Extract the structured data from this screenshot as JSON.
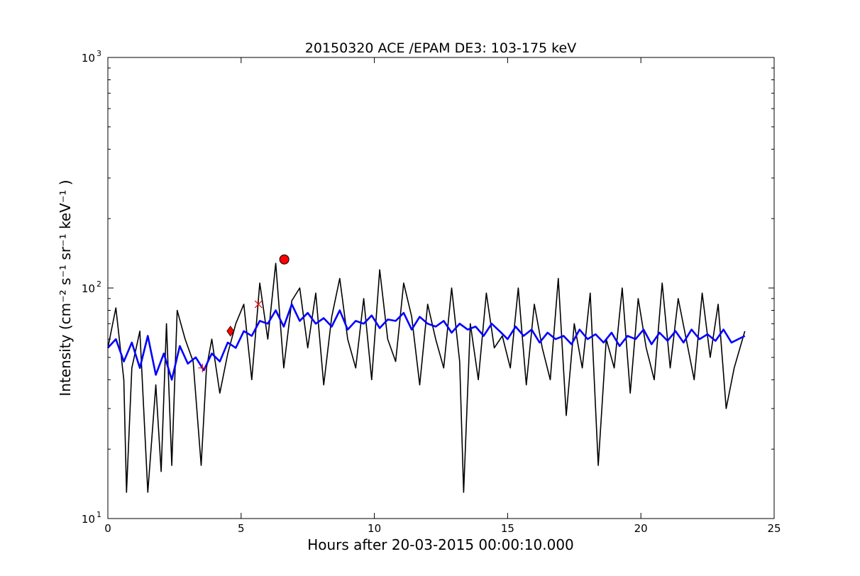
{
  "chart_data": {
    "type": "line",
    "title": "20150320 ACE /EPAM DE3: 103-175 keV",
    "xlabel": "Hours after 20-03-2015 00:00:10.000",
    "ylabel": "Intensity (cm⁻² s⁻¹ sr⁻¹ keV⁻¹ )",
    "xlim": [
      0,
      25
    ],
    "ylim": [
      10,
      1000
    ],
    "yscale": "log",
    "x_ticks": [
      0,
      5,
      10,
      15,
      20,
      25
    ],
    "x_tick_labels": [
      "0",
      "5",
      "10",
      "15",
      "20",
      "25"
    ],
    "y_ticks": [
      10,
      100,
      1000
    ],
    "y_tick_labels": [
      "10",
      "10",
      "10"
    ],
    "y_tick_exponents": [
      "1",
      "2",
      "3"
    ],
    "grid": false,
    "legend": "none",
    "series": [
      {
        "style": "black-raw",
        "color": "#000000",
        "x": [
          0.0,
          0.3,
          0.6,
          0.7,
          0.9,
          1.2,
          1.5,
          1.8,
          2.0,
          2.2,
          2.4,
          2.6,
          2.9,
          3.2,
          3.5,
          3.7,
          3.9,
          4.2,
          4.5,
          4.8,
          5.1,
          5.4,
          5.7,
          6.0,
          6.3,
          6.6,
          6.9,
          7.2,
          7.5,
          7.8,
          8.1,
          8.4,
          8.7,
          9.0,
          9.3,
          9.6,
          9.9,
          10.2,
          10.5,
          10.8,
          11.1,
          11.4,
          11.7,
          12.0,
          12.3,
          12.6,
          12.9,
          13.2,
          13.35,
          13.6,
          13.9,
          14.2,
          14.5,
          14.8,
          15.1,
          15.4,
          15.7,
          16.0,
          16.3,
          16.6,
          16.9,
          17.2,
          17.5,
          17.8,
          18.1,
          18.4,
          18.7,
          19.0,
          19.3,
          19.6,
          19.9,
          20.2,
          20.5,
          20.8,
          21.1,
          21.4,
          21.7,
          22.0,
          22.3,
          22.6,
          22.9,
          23.2,
          23.5,
          23.9
        ],
        "y": [
          55,
          82,
          40,
          13,
          45,
          65,
          13,
          38,
          16,
          70,
          17,
          80,
          60,
          48,
          17,
          45,
          60,
          35,
          52,
          70,
          85,
          40,
          105,
          60,
          128,
          45,
          88,
          100,
          55,
          95,
          38,
          75,
          110,
          60,
          45,
          90,
          40,
          120,
          60,
          48,
          105,
          75,
          38,
          85,
          60,
          45,
          100,
          48,
          13,
          70,
          40,
          95,
          55,
          62,
          45,
          100,
          38,
          85,
          55,
          40,
          110,
          28,
          70,
          45,
          95,
          17,
          60,
          45,
          100,
          35,
          90,
          55,
          40,
          105,
          45,
          90,
          60,
          40,
          95,
          50,
          85,
          30,
          45,
          65
        ]
      },
      {
        "style": "blue-average",
        "color": "#0000ff",
        "x": [
          0.0,
          0.3,
          0.6,
          0.9,
          1.2,
          1.5,
          1.8,
          2.1,
          2.4,
          2.7,
          3.0,
          3.3,
          3.6,
          3.9,
          4.2,
          4.5,
          4.8,
          5.1,
          5.4,
          5.7,
          6.0,
          6.3,
          6.6,
          6.9,
          7.2,
          7.5,
          7.8,
          8.1,
          8.4,
          8.7,
          9.0,
          9.3,
          9.6,
          9.9,
          10.2,
          10.5,
          10.8,
          11.1,
          11.4,
          11.7,
          12.0,
          12.3,
          12.6,
          12.9,
          13.2,
          13.5,
          13.8,
          14.1,
          14.4,
          14.7,
          15.0,
          15.3,
          15.6,
          15.9,
          16.2,
          16.5,
          16.8,
          17.1,
          17.4,
          17.7,
          18.0,
          18.3,
          18.6,
          18.9,
          19.2,
          19.5,
          19.8,
          20.1,
          20.4,
          20.7,
          21.0,
          21.3,
          21.6,
          21.9,
          22.2,
          22.5,
          22.8,
          23.1,
          23.4,
          23.9
        ],
        "y": [
          55,
          60,
          48,
          58,
          45,
          62,
          42,
          52,
          40,
          56,
          47,
          50,
          44,
          52,
          48,
          58,
          55,
          65,
          62,
          72,
          70,
          80,
          68,
          85,
          72,
          78,
          70,
          74,
          68,
          80,
          66,
          72,
          70,
          76,
          67,
          73,
          72,
          78,
          66,
          75,
          70,
          68,
          72,
          64,
          70,
          66,
          68,
          62,
          70,
          65,
          60,
          68,
          62,
          66,
          58,
          64,
          60,
          62,
          57,
          66,
          60,
          63,
          58,
          64,
          56,
          62,
          60,
          66,
          57,
          64,
          59,
          65,
          58,
          66,
          60,
          63,
          59,
          66,
          58,
          62
        ]
      }
    ],
    "markers": [
      {
        "shape": "plus",
        "x": 3.55,
        "y": 45,
        "color": "#ff0000"
      },
      {
        "shape": "diamond",
        "x": 4.6,
        "y": 65,
        "color": "#ff0000"
      },
      {
        "shape": "x",
        "x": 5.65,
        "y": 85,
        "color": "#ff0000"
      },
      {
        "shape": "circle",
        "x": 6.62,
        "y": 133,
        "color": "#ff0000"
      }
    ]
  }
}
